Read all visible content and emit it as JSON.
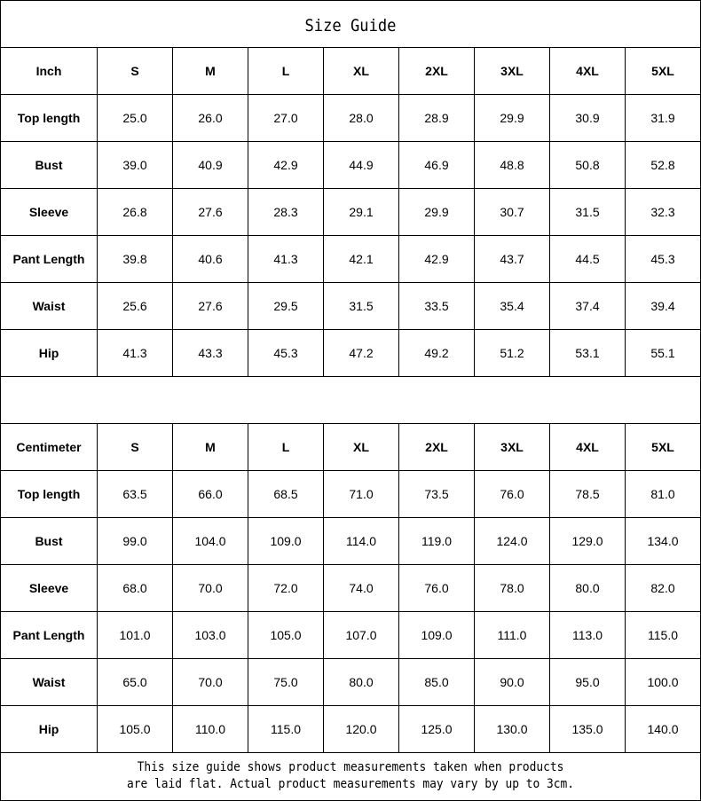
{
  "title": "Size Guide",
  "sizes": [
    "S",
    "M",
    "L",
    "XL",
    "2XL",
    "3XL",
    "4XL",
    "5XL"
  ],
  "inch": {
    "unit_label": "Inch",
    "rows": [
      {
        "label": "Top length",
        "values": [
          "25.0",
          "26.0",
          "27.0",
          "28.0",
          "28.9",
          "29.9",
          "30.9",
          "31.9"
        ]
      },
      {
        "label": "Bust",
        "values": [
          "39.0",
          "40.9",
          "42.9",
          "44.9",
          "46.9",
          "48.8",
          "50.8",
          "52.8"
        ]
      },
      {
        "label": "Sleeve",
        "values": [
          "26.8",
          "27.6",
          "28.3",
          "29.1",
          "29.9",
          "30.7",
          "31.5",
          "32.3"
        ]
      },
      {
        "label": "Pant Length",
        "values": [
          "39.8",
          "40.6",
          "41.3",
          "42.1",
          "42.9",
          "43.7",
          "44.5",
          "45.3"
        ]
      },
      {
        "label": "Waist",
        "values": [
          "25.6",
          "27.6",
          "29.5",
          "31.5",
          "33.5",
          "35.4",
          "37.4",
          "39.4"
        ]
      },
      {
        "label": "Hip",
        "values": [
          "41.3",
          "43.3",
          "45.3",
          "47.2",
          "49.2",
          "51.2",
          "53.1",
          "55.1"
        ]
      }
    ]
  },
  "cm": {
    "unit_label": "Centimeter",
    "rows": [
      {
        "label": "Top length",
        "values": [
          "63.5",
          "66.0",
          "68.5",
          "71.0",
          "73.5",
          "76.0",
          "78.5",
          "81.0"
        ]
      },
      {
        "label": "Bust",
        "values": [
          "99.0",
          "104.0",
          "109.0",
          "114.0",
          "119.0",
          "124.0",
          "129.0",
          "134.0"
        ]
      },
      {
        "label": "Sleeve",
        "values": [
          "68.0",
          "70.0",
          "72.0",
          "74.0",
          "76.0",
          "78.0",
          "80.0",
          "82.0"
        ]
      },
      {
        "label": "Pant Length",
        "values": [
          "101.0",
          "103.0",
          "105.0",
          "107.0",
          "109.0",
          "111.0",
          "113.0",
          "115.0"
        ]
      },
      {
        "label": "Waist",
        "values": [
          "65.0",
          "70.0",
          "75.0",
          "80.0",
          "85.0",
          "90.0",
          "95.0",
          "100.0"
        ]
      },
      {
        "label": "Hip",
        "values": [
          "105.0",
          "110.0",
          "115.0",
          "120.0",
          "125.0",
          "130.0",
          "135.0",
          "140.0"
        ]
      }
    ]
  },
  "note": {
    "line1": "This size guide shows product measurements taken when products",
    "line2": "are laid flat. Actual product measurements may vary by up to 3cm."
  }
}
